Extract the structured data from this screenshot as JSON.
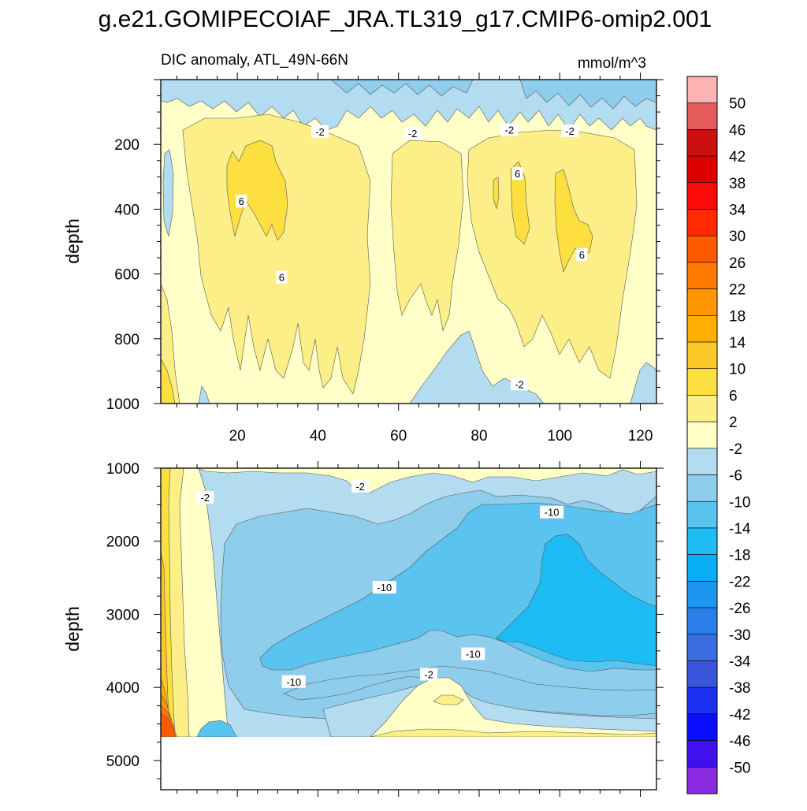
{
  "page_title": "g.e21.GOMIPECOIAF_JRA.TL319_g17.CMIP6-omip2.001",
  "chart_data": [
    {
      "type": "contour",
      "subtitle_left": "DIC anomaly, ATL_49N-66N",
      "subtitle_right": "mmol/m^3",
      "xlabel": "",
      "ylabel": "depth",
      "xlim": [
        1,
        124
      ],
      "ylim": [
        1000,
        0
      ],
      "xticks": [
        "20",
        "40",
        "60",
        "80",
        "100",
        "120"
      ],
      "yticks": [
        "200",
        "400",
        "600",
        "800",
        "1000"
      ],
      "contour_labels": [
        {
          "text": "-2",
          "x": 40.5,
          "y": 160
        },
        {
          "text": "-2",
          "x": 63.5,
          "y": 165
        },
        {
          "text": "-2",
          "x": 87.5,
          "y": 155
        },
        {
          "text": "-2",
          "x": 102.5,
          "y": 158
        },
        {
          "text": "6",
          "x": 21,
          "y": 375
        },
        {
          "text": "6",
          "x": 31,
          "y": 610
        },
        {
          "text": "6",
          "x": 89.5,
          "y": 290
        },
        {
          "text": "6",
          "x": 105.5,
          "y": 540
        },
        {
          "text": "-2",
          "x": 90,
          "y": 940
        }
      ]
    },
    {
      "type": "contour",
      "xlabel": "",
      "ylabel": "depth",
      "xlim": [
        1,
        124
      ],
      "ylim": [
        5400,
        1000
      ],
      "xticks": [],
      "yticks": [
        "1000",
        "2000",
        "3000",
        "4000",
        "5000"
      ],
      "contour_labels": [
        {
          "text": "-2",
          "x": 12,
          "y": 1400
        },
        {
          "text": "-2",
          "x": 50.5,
          "y": 1250
        },
        {
          "text": "-10",
          "x": 98,
          "y": 1600
        },
        {
          "text": "-10",
          "x": 56.5,
          "y": 2630
        },
        {
          "text": "-10",
          "x": 78.5,
          "y": 3540
        },
        {
          "text": "-2",
          "x": 67.5,
          "y": 3820
        },
        {
          "text": "-10",
          "x": 34,
          "y": 3920
        }
      ]
    }
  ],
  "colorbar": {
    "labels": [
      "50",
      "46",
      "42",
      "38",
      "34",
      "30",
      "26",
      "22",
      "18",
      "14",
      "10",
      "6",
      "2",
      "-2",
      "-6",
      "-10",
      "-14",
      "-18",
      "-22",
      "-26",
      "-30",
      "-34",
      "-38",
      "-42",
      "-46",
      "-50"
    ],
    "colors": [
      "#fbb3b3",
      "#e55a5a",
      "#cc1010",
      "#dc0000",
      "#ff0a0a",
      "#ff2a00",
      "#ff5a00",
      "#ff7a00",
      "#ff9500",
      "#ffb000",
      "#fcc828",
      "#fde040",
      "#fdef88",
      "#ffffc8",
      "#b4dcf0",
      "#8ecdeb",
      "#5ac3f0",
      "#1ebcf5",
      "#09aef5",
      "#1c96f0",
      "#2a7ee8",
      "#3a6ee0",
      "#3a56dc",
      "#1a30f0",
      "#0a10ff",
      "#4010f0",
      "#8a2be2"
    ]
  },
  "colors": {
    "c_m14": "#5ac3f0",
    "c_m18": "#1ebcf5",
    "c_m10": "#8ecdeb",
    "c_m6": "#b4dcf0",
    "c_m2": "#ffffc8",
    "c_2": "#fdef88",
    "c_6": "#fde040",
    "c_10": "#fcc828",
    "c_14": "#ffb000",
    "c_18": "#ff9500",
    "c_22": "#ff7a00",
    "c_26": "#ff5a00"
  }
}
